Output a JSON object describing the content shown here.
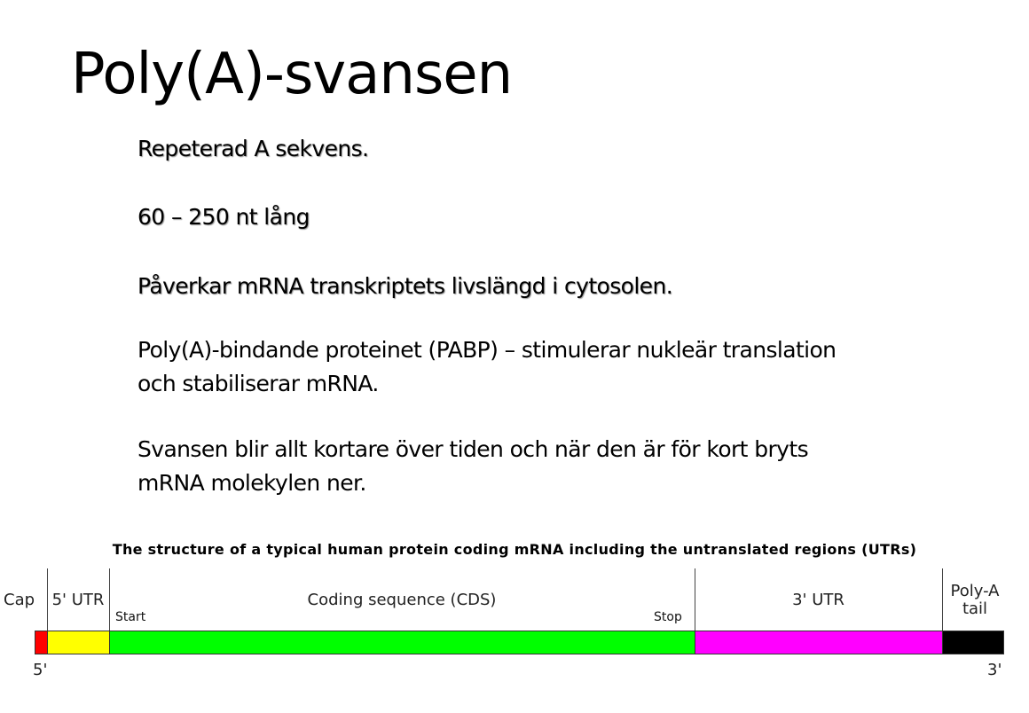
{
  "slide": {
    "title": "Poly(A)-svansen",
    "bullets": [
      "Repeterad A sekvens.",
      "60 – 250 nt lång",
      "Påverkar mRNA transkriptets livslängd i cytosolen.",
      "Poly(A)-bindande proteinet (PABP) – stimulerar nukleär translation",
      "och stabiliserar mRNA.",
      "Svansen blir allt kortare över tiden och när den är för kort bryts",
      "mRNA molekylen ner."
    ]
  },
  "diagram": {
    "title": "The structure of a typical human protein coding mRNA including the untranslated regions (UTRs)",
    "regions": [
      {
        "label": "Cap",
        "color": "#ff0000"
      },
      {
        "label": "5' UTR",
        "color": "#ffff00"
      },
      {
        "label": "Coding sequence (CDS)",
        "color": "#00ff00"
      },
      {
        "label": "3' UTR",
        "color": "#ff00ff"
      },
      {
        "label": "Poly-A tail",
        "line1": "Poly-A",
        "line2": "tail",
        "color": "#000000"
      }
    ],
    "start": "Start",
    "stop": "Stop",
    "five_prime": "5'",
    "three_prime": "3'"
  }
}
